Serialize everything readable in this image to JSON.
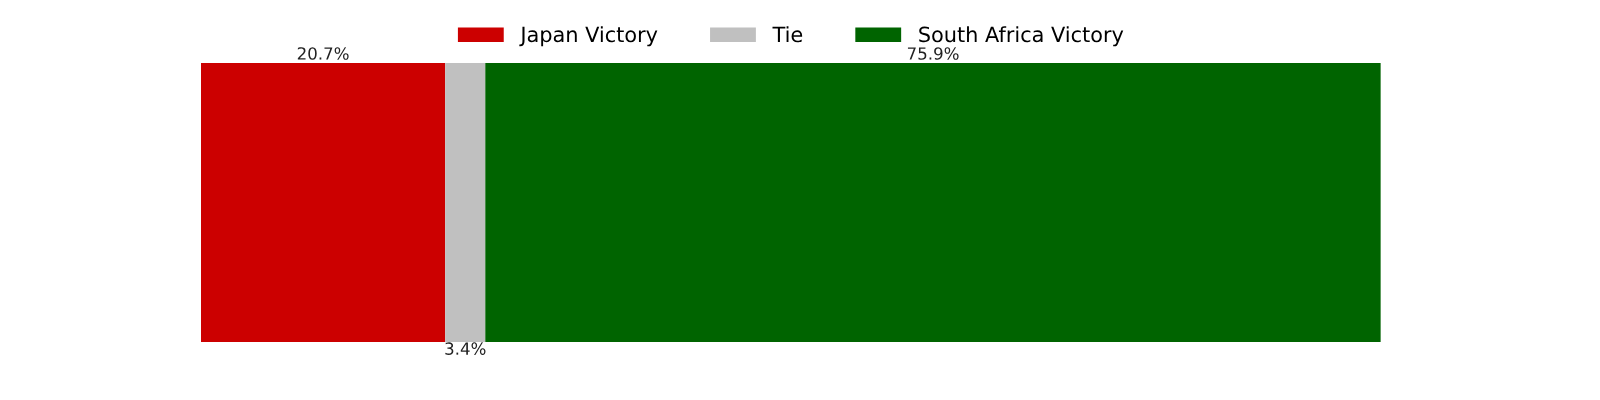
{
  "chart_data": {
    "type": "bar",
    "orientation": "horizontal",
    "stacked": true,
    "categories": [
      null
    ],
    "series": [
      {
        "name": "Japan Victory",
        "color": "#cc0000",
        "values": [
          20.7
        ],
        "value_labels": [
          "20.7%"
        ]
      },
      {
        "name": "Tie",
        "color": "#c0c0c0",
        "values": [
          3.4
        ],
        "value_labels": [
          "3.4%"
        ]
      },
      {
        "name": "South Africa Victory",
        "color": "#006400",
        "values": [
          75.9
        ],
        "value_labels": [
          "75.9%"
        ]
      }
    ],
    "tick_labels": false,
    "legend": "top",
    "grid": false
  }
}
